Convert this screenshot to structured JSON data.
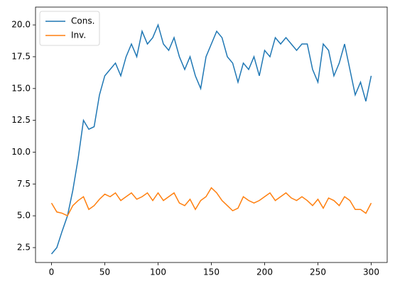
{
  "chart_data": {
    "type": "line",
    "x": [
      0,
      5,
      10,
      15,
      20,
      25,
      30,
      35,
      40,
      45,
      50,
      55,
      60,
      65,
      70,
      75,
      80,
      85,
      90,
      95,
      100,
      105,
      110,
      115,
      120,
      125,
      130,
      135,
      140,
      145,
      150,
      155,
      160,
      165,
      170,
      175,
      180,
      185,
      190,
      195,
      200,
      205,
      210,
      215,
      220,
      225,
      230,
      235,
      240,
      245,
      250,
      255,
      260,
      265,
      270,
      275,
      280,
      285,
      290,
      295,
      300
    ],
    "series": [
      {
        "name": "Cons.",
        "color": "#1f77b4",
        "values": [
          2.0,
          2.5,
          3.8,
          5.0,
          7.0,
          9.5,
          12.5,
          11.8,
          12.0,
          14.5,
          16.0,
          16.5,
          17.0,
          16.0,
          17.5,
          18.5,
          17.5,
          19.5,
          18.5,
          19.0,
          20.0,
          18.5,
          18.0,
          19.0,
          17.5,
          16.5,
          17.5,
          16.0,
          15.0,
          17.5,
          18.5,
          19.5,
          19.0,
          17.5,
          17.0,
          15.5,
          17.0,
          16.5,
          17.5,
          16.0,
          18.0,
          17.5,
          19.0,
          18.5,
          19.0,
          18.5,
          18.0,
          18.5,
          18.5,
          16.5,
          15.5,
          18.5,
          18.0,
          16.0,
          17.0,
          18.5,
          16.5,
          14.5,
          15.5,
          14.0,
          16.0
        ]
      },
      {
        "name": "Inv.",
        "color": "#ff7f0e",
        "values": [
          6.0,
          5.3,
          5.2,
          5.0,
          5.8,
          6.2,
          6.5,
          5.5,
          5.8,
          6.3,
          6.7,
          6.5,
          6.8,
          6.2,
          6.5,
          6.8,
          6.3,
          6.5,
          6.8,
          6.2,
          6.8,
          6.2,
          6.5,
          6.8,
          6.0,
          5.8,
          6.3,
          5.5,
          6.2,
          6.5,
          7.2,
          6.8,
          6.2,
          5.8,
          5.4,
          5.6,
          6.5,
          6.2,
          6.0,
          6.2,
          6.5,
          6.8,
          6.2,
          6.5,
          6.8,
          6.4,
          6.2,
          6.5,
          6.2,
          5.8,
          6.3,
          5.6,
          6.4,
          6.2,
          5.8,
          6.5,
          6.2,
          5.5,
          5.5,
          5.2,
          6.0
        ]
      }
    ],
    "xlim": [
      -15,
      315
    ],
    "xticks": [
      0,
      50,
      100,
      150,
      200,
      250,
      300
    ],
    "ylim": [
      1.33,
      21.4
    ],
    "yticks": [
      {
        "value": 2.5,
        "label": "2.5"
      },
      {
        "value": 5,
        "label": "5.0"
      },
      {
        "value": 7.5,
        "label": "7.5"
      },
      {
        "value": 10,
        "label": "10.0"
      },
      {
        "value": 12.5,
        "label": "12.5"
      },
      {
        "value": 15,
        "label": "15.0"
      },
      {
        "value": 17.5,
        "label": "17.5"
      },
      {
        "value": 20,
        "label": "20.0"
      }
    ],
    "legend": "upper left"
  }
}
